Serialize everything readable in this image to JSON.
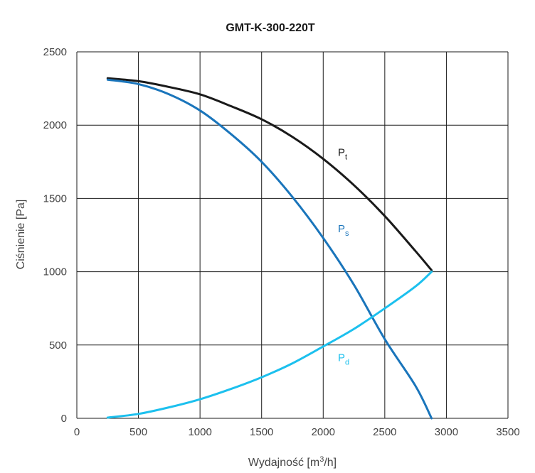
{
  "chart_data": {
    "type": "line",
    "title": "GMT-K-300-220T",
    "xlabel_prefix": "Wydajność [m",
    "xlabel_sup": "3",
    "xlabel_suffix": "/h]",
    "ylabel": "Ciśnienie [Pa]",
    "xlim": [
      0,
      3500
    ],
    "ylim": [
      0,
      2500
    ],
    "x_ticks": [
      0,
      500,
      1000,
      1500,
      2000,
      2500,
      3000,
      3500
    ],
    "y_ticks": [
      0,
      500,
      1000,
      1500,
      2000,
      2500
    ],
    "grid": true,
    "series": [
      {
        "name": "Pt",
        "label_main": "P",
        "label_sub": "t",
        "color": "#1a1a1a",
        "label_at": [
          2050,
          1790
        ],
        "points": [
          [
            250,
            2320
          ],
          [
            500,
            2300
          ],
          [
            750,
            2260
          ],
          [
            1000,
            2210
          ],
          [
            1250,
            2130
          ],
          [
            1500,
            2040
          ],
          [
            1750,
            1920
          ],
          [
            2000,
            1770
          ],
          [
            2250,
            1590
          ],
          [
            2500,
            1380
          ],
          [
            2750,
            1140
          ],
          [
            2880,
            1010
          ]
        ]
      },
      {
        "name": "Ps",
        "label_main": "P",
        "label_sub": "s",
        "color": "#1a75bb",
        "label_at": [
          2050,
          1270
        ],
        "points": [
          [
            250,
            2310
          ],
          [
            500,
            2280
          ],
          [
            750,
            2210
          ],
          [
            1000,
            2100
          ],
          [
            1250,
            1940
          ],
          [
            1500,
            1750
          ],
          [
            1750,
            1510
          ],
          [
            2000,
            1230
          ],
          [
            2250,
            910
          ],
          [
            2500,
            540
          ],
          [
            2750,
            220
          ],
          [
            2880,
            0
          ]
        ]
      },
      {
        "name": "Pd",
        "label_main": "P",
        "label_sub": "d",
        "color": "#1cc0ee",
        "label_at": [
          2050,
          390
        ],
        "points": [
          [
            250,
            5
          ],
          [
            500,
            30
          ],
          [
            750,
            75
          ],
          [
            1000,
            130
          ],
          [
            1250,
            200
          ],
          [
            1500,
            280
          ],
          [
            1750,
            375
          ],
          [
            2000,
            490
          ],
          [
            2250,
            610
          ],
          [
            2500,
            750
          ],
          [
            2750,
            900
          ],
          [
            2880,
            1000
          ]
        ]
      }
    ]
  }
}
